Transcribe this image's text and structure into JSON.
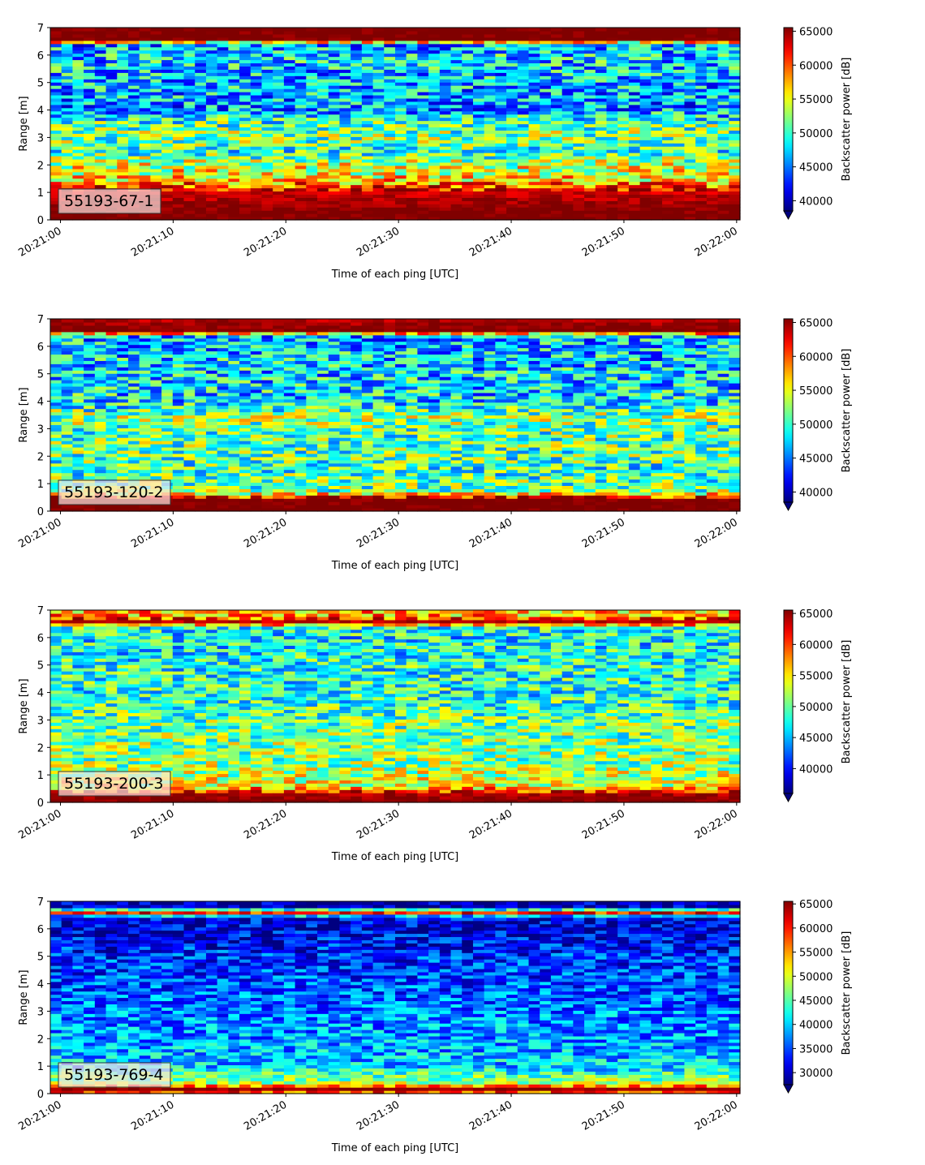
{
  "chart_data": [
    {
      "type": "heatmap",
      "label": "55193-67-1",
      "xlabel": "Time of each ping [UTC]",
      "ylabel": "Range [m]",
      "x_ticks": [
        "20:21:00",
        "20:21:10",
        "20:21:20",
        "20:21:30",
        "20:21:40",
        "20:21:50",
        "20:22:00"
      ],
      "xlim": [
        "20:21:00",
        "20:22:00"
      ],
      "y_ticks": [
        0,
        1,
        2,
        3,
        4,
        5,
        6,
        7
      ],
      "ylim": [
        0,
        7
      ],
      "colorbar": {
        "label": "Backscatter power [dB]",
        "ticks": [
          40000,
          45000,
          50000,
          55000,
          60000,
          65000
        ],
        "range": [
          38500,
          65535
        ],
        "extend": "min",
        "colormap": "jet"
      },
      "range_profile": [
        {
          "range": 0.0,
          "value": 66000
        },
        {
          "range": 0.25,
          "value": 66000
        },
        {
          "range": 1.1,
          "value": 63000
        },
        {
          "range": 1.5,
          "value": 56000
        },
        {
          "range": 2.0,
          "value": 54000
        },
        {
          "range": 2.5,
          "value": 50000
        },
        {
          "range": 3.0,
          "value": 52000
        },
        {
          "range": 3.5,
          "value": 51000
        },
        {
          "range": 4.0,
          "value": 46000
        },
        {
          "range": 5.0,
          "value": 47000
        },
        {
          "range": 6.0,
          "value": 48000
        },
        {
          "range": 6.4,
          "value": 46000
        },
        {
          "range": 6.55,
          "value": 66000
        },
        {
          "range": 7.0,
          "value": 66000
        }
      ]
    },
    {
      "type": "heatmap",
      "label": "55193-120-2",
      "xlabel": "Time of each ping [UTC]",
      "ylabel": "Range [m]",
      "x_ticks": [
        "20:21:00",
        "20:21:10",
        "20:21:20",
        "20:21:30",
        "20:21:40",
        "20:21:50",
        "20:22:00"
      ],
      "xlim": [
        "20:21:00",
        "20:22:00"
      ],
      "y_ticks": [
        0,
        1,
        2,
        3,
        4,
        5,
        6,
        7
      ],
      "ylim": [
        0,
        7
      ],
      "colorbar": {
        "label": "Backscatter power [dB]",
        "ticks": [
          40000,
          45000,
          50000,
          55000,
          60000,
          65000
        ],
        "range": [
          38500,
          65535
        ],
        "extend": "min",
        "colormap": "jet"
      },
      "range_profile": [
        {
          "range": 0.0,
          "value": 66000
        },
        {
          "range": 0.45,
          "value": 66000
        },
        {
          "range": 0.7,
          "value": 52000
        },
        {
          "range": 1.5,
          "value": 50000
        },
        {
          "range": 2.0,
          "value": 51000
        },
        {
          "range": 3.0,
          "value": 51000
        },
        {
          "range": 3.4,
          "value": 53000
        },
        {
          "range": 4.0,
          "value": 48000
        },
        {
          "range": 5.0,
          "value": 48000
        },
        {
          "range": 6.0,
          "value": 47000
        },
        {
          "range": 6.4,
          "value": 47000
        },
        {
          "range": 6.55,
          "value": 66000
        },
        {
          "range": 7.0,
          "value": 64000
        }
      ]
    },
    {
      "type": "heatmap",
      "label": "55193-200-3",
      "xlabel": "Time of each ping [UTC]",
      "ylabel": "Range [m]",
      "x_ticks": [
        "20:21:00",
        "20:21:10",
        "20:21:20",
        "20:21:30",
        "20:21:40",
        "20:21:50",
        "20:22:00"
      ],
      "xlim": [
        "20:21:00",
        "20:22:00"
      ],
      "y_ticks": [
        0,
        1,
        2,
        3,
        4,
        5,
        6,
        7
      ],
      "ylim": [
        0,
        7
      ],
      "colorbar": {
        "label": "Backscatter power [dB]",
        "ticks": [
          40000,
          45000,
          50000,
          55000,
          60000,
          65000
        ],
        "range": [
          36000,
          65535
        ],
        "extend": "min",
        "colormap": "jet"
      },
      "range_profile": [
        {
          "range": 0.0,
          "value": 66000
        },
        {
          "range": 0.35,
          "value": 64000
        },
        {
          "range": 0.6,
          "value": 54000
        },
        {
          "range": 1.5,
          "value": 51000
        },
        {
          "range": 2.0,
          "value": 51000
        },
        {
          "range": 3.0,
          "value": 50000
        },
        {
          "range": 4.0,
          "value": 48000
        },
        {
          "range": 5.0,
          "value": 48000
        },
        {
          "range": 6.0,
          "value": 47000
        },
        {
          "range": 6.4,
          "value": 48000
        },
        {
          "range": 6.55,
          "value": 65000
        },
        {
          "range": 6.8,
          "value": 57000
        },
        {
          "range": 7.0,
          "value": 56000
        }
      ]
    },
    {
      "type": "heatmap",
      "label": "55193-769-4",
      "xlabel": "Time of each ping [UTC]",
      "ylabel": "Range [m]",
      "x_ticks": [
        "20:21:00",
        "20:21:10",
        "20:21:20",
        "20:21:30",
        "20:21:40",
        "20:21:50",
        "20:22:00"
      ],
      "xlim": [
        "20:21:00",
        "20:22:00"
      ],
      "y_ticks": [
        0,
        1,
        2,
        3,
        4,
        5,
        6,
        7
      ],
      "ylim": [
        0,
        7
      ],
      "colorbar": {
        "label": "Backscatter power [dB]",
        "ticks": [
          30000,
          35000,
          40000,
          45000,
          50000,
          55000,
          60000,
          65000
        ],
        "range": [
          27500,
          65535
        ],
        "extend": "min",
        "colormap": "jet"
      },
      "range_profile": [
        {
          "range": 0.0,
          "value": 55000
        },
        {
          "range": 0.2,
          "value": 66000
        },
        {
          "range": 0.35,
          "value": 49000
        },
        {
          "range": 1.0,
          "value": 40000
        },
        {
          "range": 2.0,
          "value": 38000
        },
        {
          "range": 3.0,
          "value": 37000
        },
        {
          "range": 4.0,
          "value": 35000
        },
        {
          "range": 5.0,
          "value": 34000
        },
        {
          "range": 6.0,
          "value": 31000
        },
        {
          "range": 6.45,
          "value": 31000
        },
        {
          "range": 6.55,
          "value": 66000
        },
        {
          "range": 6.8,
          "value": 29000
        },
        {
          "range": 7.0,
          "value": 28500
        }
      ]
    }
  ]
}
